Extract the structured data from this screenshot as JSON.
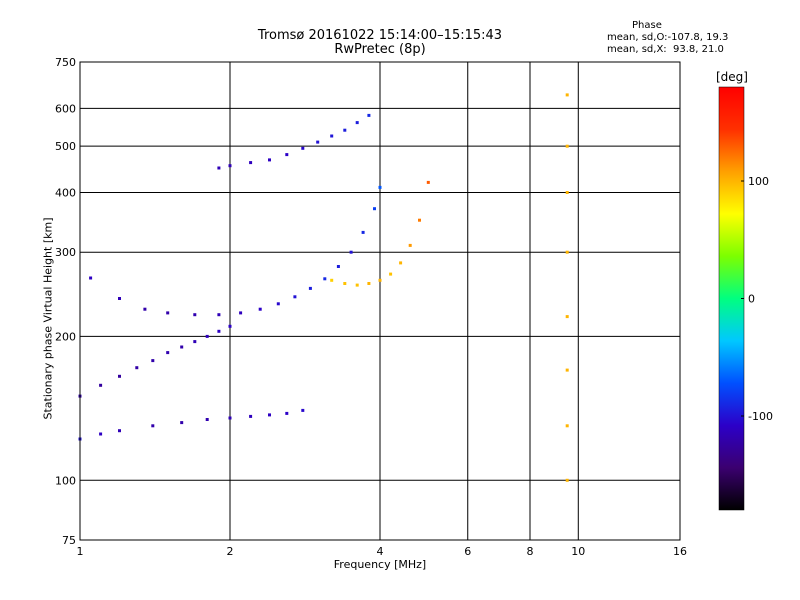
{
  "header": {
    "title": "Tromsø 20161022 15:14:00–15:15:43",
    "subtitle": "RwPretec (8p)"
  },
  "stats": {
    "heading": "Phase",
    "o_mode": "mean, sd,O:-107.8, 19.3",
    "x_mode": "mean, sd,X:  93.8, 21.0"
  },
  "colorbar": {
    "unit": "[deg]",
    "ticks": [
      100,
      0,
      -100
    ],
    "range": [
      -180,
      180
    ],
    "colors": [
      "#000000",
      "#3b0070",
      "#2c00c8",
      "#0050ff",
      "#00c8ff",
      "#00ff80",
      "#7cff00",
      "#ffff00",
      "#ffa000",
      "#ff3000",
      "#ff0000"
    ]
  },
  "chart_data": {
    "type": "scatter",
    "xlabel": "Frequency [MHz]",
    "ylabel": "Stationary phase Virtual Height [km]",
    "xscale": "log",
    "yscale": "log",
    "xlim": [
      1,
      16
    ],
    "ylim": [
      75,
      750
    ],
    "xticks": [
      1,
      2,
      4,
      6,
      8,
      10,
      16
    ],
    "yticks": [
      75,
      100,
      200,
      300,
      400,
      500,
      600,
      750
    ],
    "grid": true,
    "series": [
      {
        "x": [
          1.05,
          1.2,
          1.35,
          1.5,
          1.7,
          1.9,
          2.1,
          2.3,
          2.5,
          2.7,
          2.9,
          3.1,
          3.3,
          3.5,
          3.7,
          3.9,
          4.0
        ],
        "y": [
          265,
          240,
          228,
          224,
          222,
          222,
          224,
          228,
          234,
          242,
          252,
          264,
          280,
          300,
          330,
          370,
          410
        ],
        "phase": [
          -110,
          -115,
          -120,
          -120,
          -118,
          -115,
          -112,
          -108,
          -105,
          -100,
          -95,
          -90,
          -95,
          -100,
          -90,
          -80,
          -70
        ]
      },
      {
        "x": [
          3.2,
          3.4,
          3.6,
          3.8,
          4.0,
          4.2,
          4.4,
          4.6,
          4.8,
          5.0
        ],
        "y": [
          262,
          258,
          256,
          258,
          262,
          270,
          285,
          310,
          350,
          420
        ],
        "phase": [
          90,
          95,
          95,
          100,
          100,
          95,
          100,
          110,
          120,
          130
        ]
      },
      {
        "x": [
          1.9,
          2.0,
          2.2,
          2.4,
          2.6,
          2.8,
          3.0,
          3.2,
          3.4,
          3.6,
          3.8
        ],
        "y": [
          450,
          455,
          462,
          468,
          480,
          495,
          510,
          525,
          540,
          560,
          580
        ],
        "phase": [
          -115,
          -115,
          -112,
          -110,
          -108,
          -105,
          -100,
          -98,
          -95,
          -95,
          -90
        ]
      },
      {
        "x": [
          1.0,
          1.1,
          1.2,
          1.4,
          1.6,
          1.8,
          2.0,
          2.2,
          2.4,
          2.6,
          2.8
        ],
        "y": [
          122,
          125,
          127,
          130,
          132,
          134,
          135,
          136,
          137,
          138,
          140
        ],
        "phase": [
          -100,
          -110,
          -115,
          -120,
          -120,
          -118,
          -115,
          -112,
          -110,
          -108,
          -105
        ]
      },
      {
        "x": [
          1.0,
          1.1,
          1.2,
          1.3,
          1.4,
          1.5,
          1.6,
          1.7,
          1.8,
          1.9,
          2.0
        ],
        "y": [
          150,
          158,
          165,
          172,
          178,
          185,
          190,
          195,
          200,
          205,
          210
        ],
        "phase": [
          -120,
          -125,
          -125,
          -122,
          -120,
          -118,
          -120,
          -115,
          -112,
          -110,
          -108
        ]
      },
      {
        "x": [
          9.5,
          9.5,
          9.5,
          9.5,
          9.5,
          9.5,
          9.5,
          9.5
        ],
        "y": [
          100,
          130,
          170,
          220,
          300,
          400,
          500,
          640
        ],
        "phase": [
          100,
          100,
          100,
          100,
          100,
          100,
          100,
          100
        ]
      }
    ]
  }
}
